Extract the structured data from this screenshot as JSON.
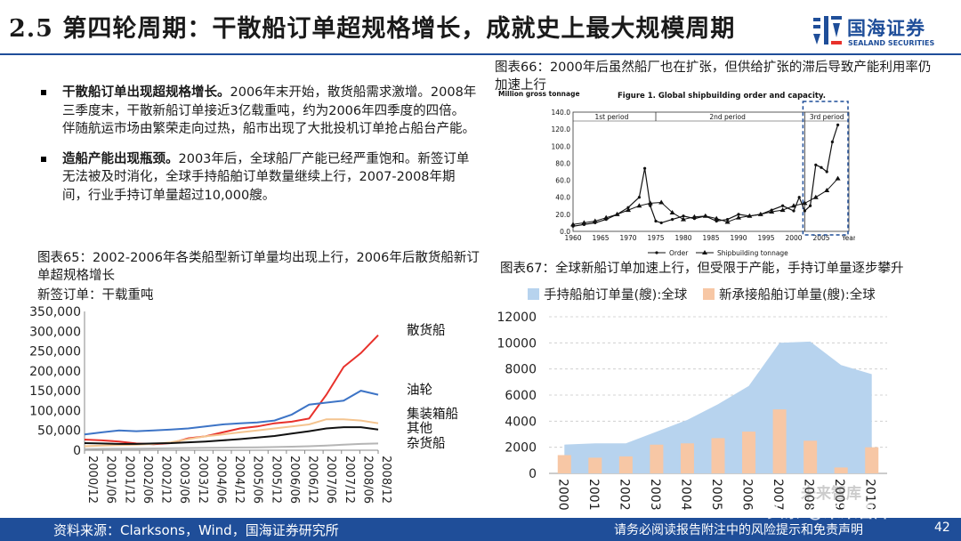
{
  "header": {
    "section_num": "2.5",
    "title": "第四轮周期：干散船订单超规格增长，成就史上最大规模周期",
    "logo_cn": "国海证券",
    "logo_en": "SEALAND SECURITIES"
  },
  "bullets": [
    {
      "bold": "干散船订单出现超规格增长。",
      "text": "2006年末开始，散货船需求激增。2008年三季度末，干散新船订单接近3亿载重吨，约为2006年四季度的四倍。伴随航运市场由繁荣走向过热，船市出现了大批投机订单抢占船台产能。"
    },
    {
      "bold": "造船产能出现瓶颈。",
      "text": "2003年后，全球船厂产能已经严重饱和。新签订单无法被及时消化，全球手持船舶订单数量继续上行，2007-2008年期间，行业手持订单量超过10,000艘。"
    }
  ],
  "captions": {
    "fig65": "图表65：2002-2006年各类船型新订单量均出现上行，2006年后散货船新订单超规格增长",
    "fig65_unit": "新签订单：干载重吨",
    "fig66": "图表66：2000年后虽然船厂也在扩张，但供给扩张的滞后导致产能利用率仍加速上行",
    "fig67": "图表67：全球新船订单加速上行，但受限于产能，手持订单量逐步攀升"
  },
  "footer": {
    "source": "资料来源：Clarksons，Wind，国海证券研究所",
    "disclaimer": "请务必阅读报告附注中的风险提示和免责声明",
    "page": "42"
  },
  "watermark": {
    "top": "未来智库",
    "bottom": "头条 @未来智库"
  },
  "colors": {
    "brand": "#1f4e99",
    "bulk": "#e8312b",
    "tanker": "#3d74c6",
    "container": "#f4c48f",
    "other": "#111111",
    "general": "#b5b5b5",
    "holding": "#b7d3ee",
    "neworder": "#f7c7a5"
  },
  "chart_data": [
    {
      "id": "fig65",
      "type": "line",
      "title": "2002-2006年各类船型新订单量均出现上行，2006年后散货船新订单超规格增长",
      "ylabel": "新签订单：干载重吨",
      "ylim": [
        0,
        350000
      ],
      "yticks": [
        "0",
        "50,000",
        "100,000",
        "150,000",
        "200,000",
        "250,000",
        "300,000",
        "350,000"
      ],
      "x_start": "2000/12",
      "x_end": "2008/12",
      "xticks": [
        "2000/12",
        "2001/06",
        "2001/12",
        "2002/06",
        "2002/12",
        "2003/06",
        "2003/12",
        "2004/06",
        "2004/12",
        "2005/06",
        "2005/12",
        "2006/06",
        "2006/12",
        "2007/06",
        "2007/12",
        "2008/06",
        "2008/12"
      ],
      "series": [
        {
          "name": "散货船",
          "x": [
            0,
            0.5,
            1,
            1.5,
            2,
            2.5,
            3,
            3.5,
            4,
            4.5,
            5,
            5.5,
            6,
            6.5,
            7,
            7.5,
            8,
            8.5
          ],
          "values": [
            27000,
            25000,
            22000,
            17000,
            15000,
            18000,
            30000,
            35000,
            45000,
            55000,
            60000,
            68000,
            72000,
            80000,
            140000,
            210000,
            245000,
            290000
          ]
        },
        {
          "name": "油轮",
          "x": [
            0,
            0.5,
            1,
            1.5,
            2,
            2.5,
            3,
            3.5,
            4,
            4.5,
            5,
            5.5,
            6,
            6.5,
            7,
            7.5,
            8,
            8.5
          ],
          "values": [
            40000,
            45000,
            50000,
            48000,
            50000,
            52000,
            55000,
            60000,
            65000,
            68000,
            70000,
            75000,
            90000,
            115000,
            120000,
            125000,
            150000,
            140000
          ]
        },
        {
          "name": "集装箱船",
          "x": [
            0,
            0.5,
            1,
            1.5,
            2,
            2.5,
            3,
            3.5,
            4,
            4.5,
            5,
            5.5,
            6,
            6.5,
            7,
            7.5,
            8,
            8.5
          ],
          "values": [
            10000,
            12000,
            13000,
            14000,
            16000,
            20000,
            28000,
            35000,
            40000,
            45000,
            50000,
            55000,
            60000,
            65000,
            78000,
            78000,
            75000,
            68000
          ]
        },
        {
          "name": "其他",
          "x": [
            0,
            0.5,
            1,
            1.5,
            2,
            2.5,
            3,
            3.5,
            4,
            4.5,
            5,
            5.5,
            6,
            6.5,
            7,
            7.5,
            8,
            8.5
          ],
          "values": [
            18000,
            17000,
            16000,
            16000,
            17000,
            18000,
            20000,
            22000,
            25000,
            28000,
            32000,
            36000,
            42000,
            48000,
            55000,
            58000,
            58000,
            52000
          ]
        },
        {
          "name": "杂货船",
          "x": [
            0,
            0.5,
            1,
            1.5,
            2,
            2.5,
            3,
            3.5,
            4,
            4.5,
            5,
            5.5,
            6,
            6.5,
            7,
            7.5,
            8,
            8.5
          ],
          "values": [
            3000,
            3500,
            4000,
            4000,
            4500,
            5000,
            5500,
            6000,
            6500,
            7000,
            7500,
            8000,
            9000,
            10000,
            12000,
            14000,
            16000,
            17000
          ]
        }
      ]
    },
    {
      "id": "fig66",
      "type": "line",
      "title": "Figure 1.  Global shipbuilding order and capacity.",
      "ylabel": "Million gross tonnage",
      "ylim": [
        0,
        140
      ],
      "yticks": [
        "0.0",
        "20.0",
        "40.0",
        "60.0",
        "80.0",
        "100.0",
        "120.0",
        "140.0"
      ],
      "xlim": [
        1960,
        2010
      ],
      "xticks": [
        "1960",
        "1965",
        "1970",
        "1975",
        "1980",
        "1985",
        "1990",
        "1995",
        "2000",
        "2005",
        "Year"
      ],
      "periods": [
        "1st period",
        "2nd period",
        "3rd period"
      ],
      "legend": [
        "Order",
        "Shipbuilding tonnage"
      ],
      "series": [
        {
          "name": "Order",
          "x": [
            1960,
            1962,
            1964,
            1966,
            1968,
            1970,
            1972,
            1973,
            1974,
            1975,
            1976,
            1978,
            1980,
            1982,
            1984,
            1986,
            1988,
            1990,
            1992,
            1994,
            1996,
            1998,
            2000,
            2001,
            2002,
            2003,
            2004,
            2005,
            2006,
            2007,
            2008
          ],
          "values": [
            6,
            8,
            10,
            14,
            20,
            28,
            40,
            74,
            30,
            12,
            10,
            14,
            18,
            15,
            18,
            12,
            14,
            20,
            18,
            20,
            25,
            30,
            24,
            40,
            24,
            30,
            78,
            75,
            70,
            105,
            125
          ]
        },
        {
          "name": "Shipbuilding tonnage",
          "x": [
            1960,
            1962,
            1964,
            1966,
            1968,
            1970,
            1972,
            1974,
            1976,
            1978,
            1980,
            1982,
            1984,
            1986,
            1988,
            1990,
            1992,
            1994,
            1996,
            1998,
            2000,
            2002,
            2004,
            2006,
            2008
          ],
          "values": [
            8,
            10,
            12,
            16,
            20,
            25,
            30,
            33,
            34,
            22,
            14,
            17,
            18,
            15,
            11,
            16,
            18,
            20,
            23,
            25,
            30,
            33,
            40,
            48,
            62
          ]
        }
      ]
    },
    {
      "id": "fig67",
      "type": "area",
      "title": "全球新船订单加速上行，但受限于产能，手持订单量逐步攀升",
      "ylim": [
        0,
        12000
      ],
      "yticks": [
        "0",
        "2000",
        "4000",
        "6000",
        "8000",
        "10000",
        "12000"
      ],
      "categories": [
        "2000",
        "2001",
        "2002",
        "2003",
        "2004",
        "2005",
        "2006",
        "2007",
        "2008",
        "2009",
        "2010"
      ],
      "legend": [
        "手持船舶订单量(艘):全球",
        "新承接船舶订单量(艘):全球"
      ],
      "series": [
        {
          "name": "手持船舶订单量(艘):全球",
          "type": "area",
          "values": [
            2200,
            2300,
            2300,
            3200,
            4100,
            5300,
            6700,
            10000,
            10100,
            8300,
            7600
          ]
        },
        {
          "name": "新承接船舶订单量(艘):全球",
          "type": "bar",
          "values": [
            1400,
            1200,
            1300,
            2200,
            2300,
            2700,
            3200,
            4900,
            2500,
            450,
            2000
          ]
        }
      ]
    }
  ]
}
